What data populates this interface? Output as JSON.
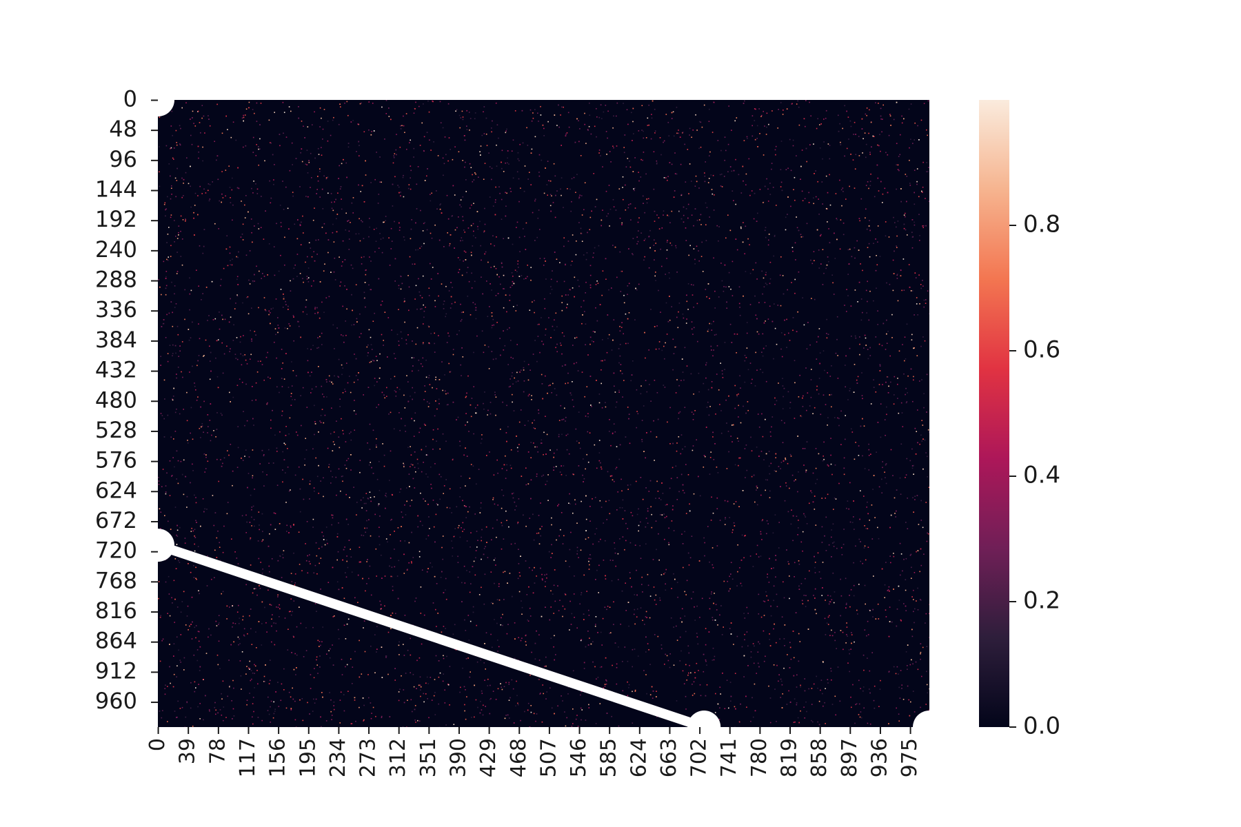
{
  "chart_data": {
    "type": "heatmap",
    "title": "",
    "xlabel": "",
    "ylabel": "",
    "rows": 1000,
    "cols": 1000,
    "cell_value_distribution": "sparse random values in [0, 1]; mostly near 0",
    "x_tick_labels": [
      "0",
      "39",
      "78",
      "117",
      "156",
      "195",
      "234",
      "273",
      "312",
      "351",
      "390",
      "429",
      "468",
      "507",
      "546",
      "585",
      "624",
      "663",
      "702",
      "741",
      "780",
      "819",
      "858",
      "897",
      "936",
      "975"
    ],
    "x_tick_step": 39,
    "y_tick_labels": [
      "0",
      "48",
      "96",
      "144",
      "192",
      "240",
      "288",
      "336",
      "384",
      "432",
      "480",
      "528",
      "576",
      "624",
      "672",
      "720",
      "768",
      "816",
      "864",
      "912",
      "960"
    ],
    "y_tick_step": 48,
    "colormap": "rocket",
    "colormap_stops": [
      "#03051a",
      "#2e1e3b",
      "#701f57",
      "#ad1759",
      "#e13342",
      "#f37651",
      "#f6b48f",
      "#faebdd"
    ],
    "colorbar": {
      "vmin": 0.0,
      "vmax": 1.0,
      "tick_values": [
        0.0,
        0.2,
        0.4,
        0.6,
        0.8
      ],
      "tick_labels": [
        "0.0",
        "0.2",
        "0.4",
        "0.6",
        "0.8"
      ]
    },
    "annotation_line": {
      "description": "white diagonal stroke with round endpoint markers",
      "from": {
        "x": 0,
        "y": 710
      },
      "to": {
        "x": 708,
        "y": 1000
      },
      "color": "#ffffff"
    },
    "corner_markers": [
      {
        "x": 0,
        "y": 0
      },
      {
        "x": 1000,
        "y": 1000
      }
    ]
  }
}
